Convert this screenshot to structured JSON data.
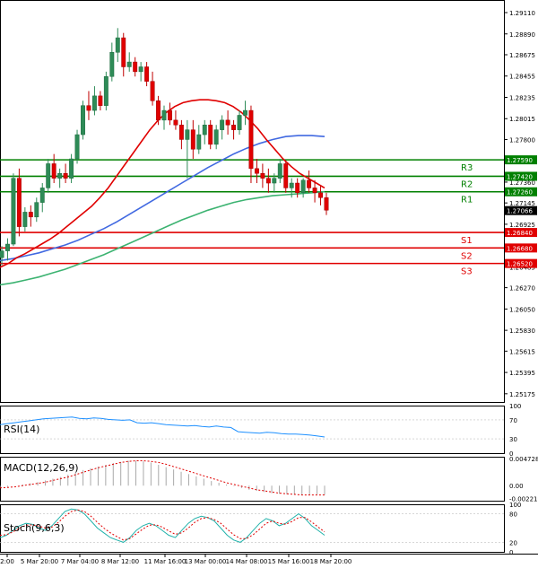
{
  "chart_data": {
    "type": "candlestick",
    "main": {
      "y_ticks": [
        "1.29110",
        "1.28890",
        "1.28675",
        "1.28455",
        "1.28235",
        "1.28015",
        "1.27800",
        "1.27580",
        "1.27360",
        "1.27145",
        "1.26925",
        "1.26705",
        "1.26485",
        "1.26270",
        "1.26050",
        "1.25830",
        "1.25615",
        "1.25395",
        "1.25175"
      ],
      "ylim": [
        1.2509,
        1.2924
      ],
      "candles": [
        [
          1.2658,
          1.267,
          1.265,
          1.2665
        ],
        [
          1.2665,
          1.2678,
          1.2655,
          1.2672
        ],
        [
          1.2672,
          1.2745,
          1.267,
          1.274
        ],
        [
          1.274,
          1.275,
          1.268,
          1.269
        ],
        [
          1.269,
          1.271,
          1.2685,
          1.2705
        ],
        [
          1.2705,
          1.2712,
          1.269,
          1.27
        ],
        [
          1.27,
          1.272,
          1.2695,
          1.2715
        ],
        [
          1.2715,
          1.2735,
          1.2705,
          1.273
        ],
        [
          1.273,
          1.276,
          1.2725,
          1.2755
        ],
        [
          1.2755,
          1.2765,
          1.2735,
          1.274
        ],
        [
          1.274,
          1.275,
          1.273,
          1.2745
        ],
        [
          1.2745,
          1.2755,
          1.2735,
          1.274
        ],
        [
          1.274,
          1.2765,
          1.2735,
          1.276
        ],
        [
          1.276,
          1.279,
          1.2755,
          1.2785
        ],
        [
          1.2785,
          1.282,
          1.278,
          1.2815
        ],
        [
          1.2815,
          1.283,
          1.28,
          1.281
        ],
        [
          1.281,
          1.2835,
          1.2805,
          1.2825
        ],
        [
          1.2825,
          1.283,
          1.281,
          1.2815
        ],
        [
          1.2815,
          1.285,
          1.281,
          1.2845
        ],
        [
          1.2845,
          1.288,
          1.284,
          1.287
        ],
        [
          1.287,
          1.2895,
          1.286,
          1.2885
        ],
        [
          1.2885,
          1.289,
          1.2845,
          1.2855
        ],
        [
          1.2855,
          1.287,
          1.285,
          1.286
        ],
        [
          1.286,
          1.2865,
          1.2845,
          1.285
        ],
        [
          1.285,
          1.286,
          1.284,
          1.2855
        ],
        [
          1.2855,
          1.286,
          1.2835,
          1.284
        ],
        [
          1.284,
          1.285,
          1.2815,
          1.282
        ],
        [
          1.282,
          1.2825,
          1.2795,
          1.28
        ],
        [
          1.28,
          1.2815,
          1.279,
          1.281
        ],
        [
          1.281,
          1.2818,
          1.2795,
          1.28
        ],
        [
          1.28,
          1.281,
          1.279,
          1.2795
        ],
        [
          1.2795,
          1.28,
          1.277,
          1.278
        ],
        [
          1.278,
          1.28,
          1.274,
          1.279
        ],
        [
          1.279,
          1.28,
          1.276,
          1.277
        ],
        [
          1.277,
          1.2795,
          1.2765,
          1.2785
        ],
        [
          1.2785,
          1.28,
          1.2775,
          1.2795
        ],
        [
          1.2795,
          1.28,
          1.277,
          1.2775
        ],
        [
          1.2775,
          1.2795,
          1.277,
          1.279
        ],
        [
          1.279,
          1.2805,
          1.278,
          1.28
        ],
        [
          1.28,
          1.281,
          1.2785,
          1.2795
        ],
        [
          1.2795,
          1.28,
          1.278,
          1.279
        ],
        [
          1.279,
          1.281,
          1.2785,
          1.2805
        ],
        [
          1.2805,
          1.282,
          1.2795,
          1.281
        ],
        [
          1.281,
          1.2815,
          1.2735,
          1.275
        ],
        [
          1.275,
          1.276,
          1.2735,
          1.2745
        ],
        [
          1.2745,
          1.2755,
          1.273,
          1.274
        ],
        [
          1.274,
          1.275,
          1.2725,
          1.2735
        ],
        [
          1.2735,
          1.2745,
          1.2725,
          1.274
        ],
        [
          1.274,
          1.276,
          1.2735,
          1.2755
        ],
        [
          1.2755,
          1.2758,
          1.2725,
          1.273
        ],
        [
          1.273,
          1.274,
          1.272,
          1.2735
        ],
        [
          1.2735,
          1.274,
          1.272,
          1.2725
        ],
        [
          1.2725,
          1.274,
          1.272,
          1.2738
        ],
        [
          1.2738,
          1.2748,
          1.2725,
          1.273
        ],
        [
          1.273,
          1.2738,
          1.2715,
          1.2725
        ],
        [
          1.2725,
          1.2732,
          1.2712,
          1.272
        ],
        [
          1.272,
          1.2725,
          1.2702,
          1.2707
        ]
      ],
      "ma_red": [
        1.2648,
        1.2652,
        1.2658,
        1.2662,
        1.2667,
        1.2672,
        1.2677,
        1.2683,
        1.269,
        1.2697,
        1.2704,
        1.2711,
        1.272,
        1.273,
        1.2742,
        1.2754,
        1.2766,
        1.2778,
        1.279,
        1.28,
        1.2808,
        1.2814,
        1.2818,
        1.282,
        1.2821,
        1.2821,
        1.282,
        1.2818,
        1.2814,
        1.2808,
        1.28,
        1.2791,
        1.278,
        1.277,
        1.276,
        1.2752,
        1.2745,
        1.274,
        1.2735,
        1.273
      ],
      "ma_blue": [
        1.2655,
        1.2657,
        1.266,
        1.2663,
        1.2667,
        1.2671,
        1.2676,
        1.2682,
        1.2688,
        1.2695,
        1.2703,
        1.2711,
        1.2719,
        1.2727,
        1.2735,
        1.2743,
        1.2751,
        1.2758,
        1.2765,
        1.2771,
        1.2776,
        1.278,
        1.2783,
        1.2784,
        1.2784,
        1.2783
      ],
      "ma_green": [
        1.263,
        1.2632,
        1.2635,
        1.2638,
        1.2642,
        1.2646,
        1.2651,
        1.2656,
        1.2661,
        1.2667,
        1.2673,
        1.2679,
        1.2685,
        1.2691,
        1.2697,
        1.2702,
        1.2707,
        1.2711,
        1.2715,
        1.2718,
        1.272,
        1.2722,
        1.2723,
        1.2724,
        1.2725,
        1.2726
      ],
      "levels": [
        {
          "label": "R3",
          "value": 1.2759,
          "price": "1.27590",
          "color": "#008000"
        },
        {
          "label": "R2",
          "value": 1.2742,
          "price": "1.27420",
          "color": "#008000"
        },
        {
          "label": "R1",
          "value": 1.2726,
          "price": "1.27260",
          "color": "#008000"
        },
        {
          "label": "S1",
          "value": 1.2684,
          "price": "1.26840",
          "color": "#e00000"
        },
        {
          "label": "S2",
          "value": 1.2668,
          "price": "1.26680",
          "color": "#e00000"
        },
        {
          "label": "S3",
          "value": 1.2652,
          "price": "1.26520",
          "color": "#e00000"
        }
      ],
      "current_price": {
        "value": 1.27066,
        "label": "1.27066"
      }
    },
    "x_ticks": [
      "2:00",
      "5 Mar 20:00",
      "7 Mar 04:00",
      "8 Mar 12:00",
      "11 Mar 16:00",
      "13 Mar 00:00",
      "14 Mar 08:00",
      "15 Mar 16:00",
      "18 Mar 20:00"
    ],
    "rsi": {
      "label": "RSI(14)",
      "ticks": [
        "100",
        "70",
        "30",
        "0"
      ],
      "ylim": [
        0,
        100
      ],
      "values": [
        60,
        62,
        64,
        66,
        68,
        70,
        72,
        73,
        74,
        75,
        76,
        73,
        72,
        74,
        73,
        71,
        70,
        69,
        70,
        64,
        63,
        64,
        62,
        60,
        59,
        58,
        57,
        58,
        56,
        55,
        57,
        55,
        54,
        45,
        44,
        43,
        42,
        44,
        43,
        41,
        40,
        40,
        39,
        38,
        36,
        34
      ]
    },
    "macd": {
      "label": "MACD(12,26,9)",
      "ticks": [
        "0.004728",
        "0.00",
        "-0.002219"
      ],
      "ylim": [
        -0.0026,
        0.005
      ],
      "hist": [
        -0.0003,
        -0.0002,
        0.0,
        0.0002,
        0.0004,
        0.0006,
        0.0009,
        0.0012,
        0.0015,
        0.0019,
        0.0023,
        0.0027,
        0.003,
        0.0033,
        0.0036,
        0.0039,
        0.0041,
        0.0043,
        0.0043,
        0.0042,
        0.004,
        0.0036,
        0.0032,
        0.0028,
        0.0024,
        0.002,
        0.0016,
        0.0012,
        0.0008,
        0.0005,
        0.0002,
        -0.0001,
        -0.0004,
        -0.0007,
        -0.0009,
        -0.0011,
        -0.0013,
        -0.0014,
        -0.0015,
        -0.0016,
        -0.0016,
        -0.0016,
        -0.0015,
        -0.0016
      ],
      "signal": [
        -0.0004,
        -0.0003,
        -0.0002,
        0.0,
        0.0002,
        0.0004,
        0.0006,
        0.0009,
        0.0012,
        0.0015,
        0.0019,
        0.0023,
        0.0027,
        0.0031,
        0.0034,
        0.0037,
        0.004,
        0.0042,
        0.0043,
        0.0043,
        0.0042,
        0.004,
        0.0037,
        0.0033,
        0.0029,
        0.0025,
        0.0021,
        0.0017,
        0.0013,
        0.0009,
        0.0005,
        0.0002,
        -0.0001,
        -0.0004,
        -0.0007,
        -0.0009,
        -0.0011,
        -0.0013,
        -0.0014,
        -0.0015,
        -0.0016,
        -0.0016,
        -0.0016,
        -0.0016
      ]
    },
    "stoch": {
      "label": "Stoch(9,6,3)",
      "ticks": [
        "100",
        "80",
        "20",
        "0"
      ],
      "ylim": [
        0,
        100
      ],
      "k": [
        30,
        35,
        45,
        55,
        60,
        58,
        50,
        45,
        55,
        70,
        85,
        90,
        88,
        80,
        65,
        50,
        40,
        30,
        25,
        20,
        30,
        45,
        55,
        60,
        55,
        45,
        35,
        30,
        45,
        60,
        70,
        75,
        72,
        65,
        50,
        35,
        25,
        20,
        30,
        45,
        60,
        70,
        65,
        55,
        60,
        70,
        80,
        70,
        55,
        45,
        35
      ],
      "d": [
        35,
        36,
        42,
        50,
        56,
        57,
        54,
        50,
        52,
        62,
        75,
        85,
        88,
        85,
        75,
        62,
        50,
        40,
        32,
        25,
        28,
        38,
        48,
        56,
        57,
        52,
        44,
        37,
        40,
        50,
        62,
        70,
        72,
        68,
        60,
        48,
        36,
        28,
        28,
        36,
        48,
        60,
        65,
        60,
        58,
        64,
        72,
        72,
        63,
        52,
        42
      ]
    }
  }
}
